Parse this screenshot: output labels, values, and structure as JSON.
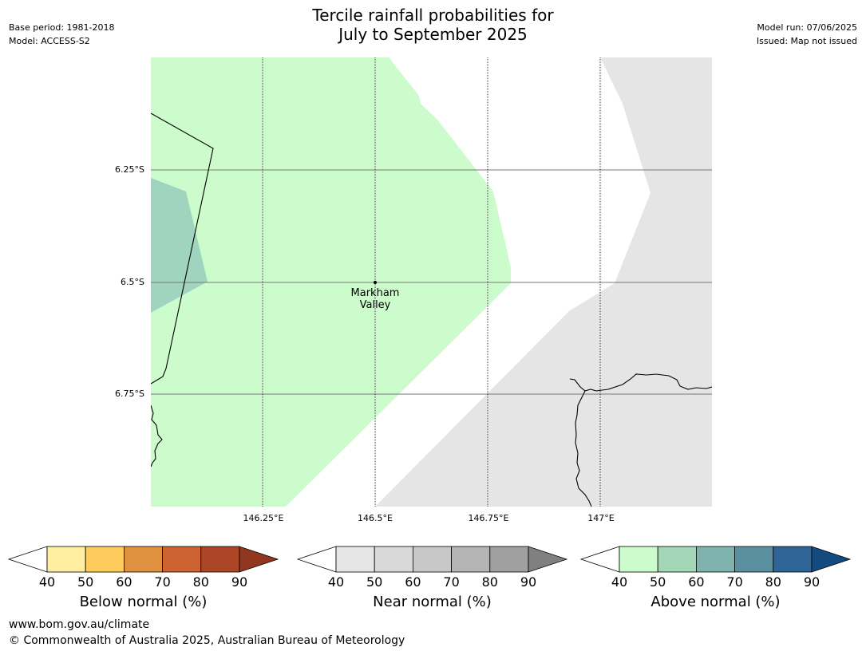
{
  "title": {
    "line1": "Tercile rainfall probabilities for",
    "line2": "July to September 2025"
  },
  "meta_left": {
    "base_period": "Base period: 1981-2018",
    "model": "Model: ACCESS-S2"
  },
  "meta_right": {
    "model_run": "Model run: 07/06/2025",
    "issued": "Issued: Map not issued"
  },
  "map": {
    "latitude_labels": [
      "6.25°S",
      "6.5°S",
      "6.75°S"
    ],
    "longitude_labels": [
      "146.25°E",
      "146.5°E",
      "146.75°E",
      "147°E"
    ],
    "place": {
      "name_line1": "Markham",
      "name_line2": "Valley"
    },
    "colors": {
      "above_40_50": "#ccfccc",
      "above_50_60": "#9fd4be",
      "near_40_50": "#e6e6e6",
      "background": "#ffffff"
    }
  },
  "colorbars": [
    {
      "title": "Below normal (%)",
      "ticks": [
        "40",
        "50",
        "60",
        "70",
        "80",
        "90"
      ],
      "colors": [
        "#ffeda0",
        "#fecc5c",
        "#e0913f",
        "#cd6330",
        "#ac4626",
        "#93361f"
      ]
    },
    {
      "title": "Near normal (%)",
      "ticks": [
        "40",
        "50",
        "60",
        "70",
        "80",
        "90"
      ],
      "colors": [
        "#e6e6e6",
        "#d9d9d9",
        "#c8c8c8",
        "#b4b4b4",
        "#a0a0a0",
        "#808080"
      ]
    },
    {
      "title": "Above normal (%)",
      "ticks": [
        "40",
        "50",
        "60",
        "70",
        "80",
        "90"
      ],
      "colors": [
        "#ccfccc",
        "#a3d6b6",
        "#7fb3ad",
        "#5a8fa0",
        "#2f6496",
        "#134a80"
      ]
    }
  ],
  "footer": {
    "website": "www.bom.gov.au/climate",
    "copyright": "© Commonwealth of Australia 2025, Australian Bureau of Meteorology"
  }
}
